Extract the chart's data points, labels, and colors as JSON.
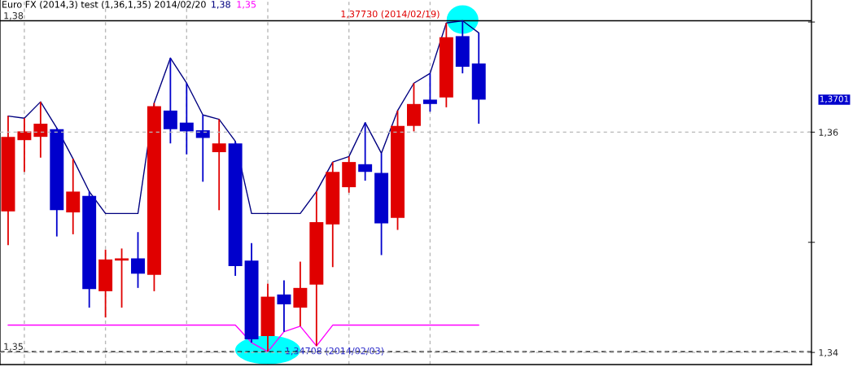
{
  "chart_data": {
    "type": "candlestick",
    "title": "Euro FX (2014,3) test (1,36,1,35) 2014/02/20",
    "categories": [
      null,
      null,
      null,
      null,
      null,
      null,
      null,
      null,
      null,
      null,
      null,
      null,
      null,
      null,
      null,
      null,
      null,
      null,
      null,
      null,
      null,
      null,
      null,
      null,
      null,
      null,
      null,
      null,
      null,
      null,
      null,
      null,
      null,
      null,
      null,
      null,
      null,
      null,
      null,
      null,
      null,
      null,
      null,
      null,
      null,
      null,
      null,
      null,
      null,
      null
    ],
    "ohlc": [
      [
        1.3599,
        1.3686,
        1.3568,
        1.3667
      ],
      [
        1.3664,
        1.3684,
        1.3635,
        1.3672
      ],
      [
        1.3667,
        1.3699,
        1.3648,
        1.3679
      ],
      [
        1.3674,
        1.3675,
        1.3576,
        1.36
      ],
      [
        1.3598,
        1.3647,
        1.3578,
        1.3617
      ],
      [
        1.3613,
        1.3617,
        1.3511,
        1.3528
      ],
      [
        1.3526,
        1.3564,
        1.3502,
        1.3555
      ],
      [
        1.3554,
        1.3565,
        1.3511,
        1.3556
      ],
      [
        1.3556,
        1.358,
        1.3529,
        1.3542
      ],
      [
        1.3541,
        1.3698,
        1.3526,
        1.3695
      ],
      [
        1.3691,
        1.3739,
        1.3661,
        1.3674
      ],
      [
        1.368,
        1.3716,
        1.3651,
        1.3672
      ],
      [
        1.3673,
        1.3687,
        1.3626,
        1.3666
      ],
      [
        1.3653,
        1.3683,
        1.36,
        1.3661
      ],
      [
        1.3661,
        1.3663,
        1.354,
        1.3549
      ],
      [
        1.3554,
        1.357,
        1.3479,
        1.3482
      ],
      [
        1.3485,
        1.3533,
        1.34708,
        1.3521
      ],
      [
        1.3523,
        1.3536,
        1.3489,
        1.3514
      ],
      [
        1.3511,
        1.3553,
        1.3494,
        1.3529
      ],
      [
        1.3532,
        1.3617,
        1.3476,
        1.3589
      ],
      [
        1.3587,
        1.3644,
        1.3548,
        1.3635
      ],
      [
        1.3621,
        1.3649,
        1.3616,
        1.3644
      ],
      [
        1.3642,
        1.368,
        1.3627,
        1.3635
      ],
      [
        1.3634,
        1.3652,
        1.3559,
        1.3588
      ],
      [
        1.3593,
        1.3691,
        1.3582,
        1.3677
      ],
      [
        1.3677,
        1.3716,
        1.3672,
        1.3697
      ],
      [
        1.3701,
        1.3725,
        1.369,
        1.3697
      ],
      [
        1.3703,
        1.3771,
        1.3694,
        1.3758
      ],
      [
        1.3759,
        1.3773,
        1.3725,
        1.3731
      ],
      [
        1.3734,
        1.3762,
        1.3679,
        1.3701
      ],
      null,
      null,
      null,
      null,
      null,
      null,
      null,
      null,
      null,
      null,
      null,
      null,
      null,
      null,
      null,
      null,
      null,
      null,
      null,
      null
    ],
    "colors": [
      "#e00000",
      "#e00000",
      "#e00000",
      "#0000cc",
      "#e00000",
      "#0000cc",
      "#e00000",
      "#e00000",
      "#0000cc",
      "#e00000",
      "#0000cc",
      "#0000cc",
      "#0000cc",
      "#e00000",
      "#0000cc",
      "#0000cc",
      "#e00000",
      "#0000cc",
      "#e00000",
      "#e00000",
      "#e00000",
      "#e00000",
      "#0000cc",
      "#0000cc",
      "#e00000",
      "#e00000",
      "#0000cc",
      "#e00000",
      "#0000cc",
      "#0000cc",
      null,
      null,
      null,
      null,
      null,
      null,
      null,
      null,
      null,
      null,
      null,
      null,
      null,
      null,
      null,
      null,
      null,
      null,
      null,
      null
    ],
    "series": [
      {
        "name": "1,38",
        "type": "line",
        "color": "#000080",
        "values": [
          1.3686,
          1.3684,
          1.3699,
          1.3675,
          1.3647,
          1.3617,
          1.3597,
          1.3597,
          1.3597,
          1.3698,
          1.3739,
          1.3716,
          1.3687,
          1.3683,
          1.3663,
          1.3597,
          1.3597,
          1.3597,
          1.3597,
          1.3617,
          1.3644,
          1.3649,
          1.368,
          1.3652,
          1.3691,
          1.3716,
          1.3725,
          1.3771,
          1.3773,
          1.3762,
          null,
          null,
          null,
          null,
          null,
          null,
          null,
          null,
          null,
          null,
          null,
          null,
          null,
          null,
          null,
          null,
          null,
          null,
          null,
          null
        ]
      },
      {
        "name": "1,35",
        "type": "line",
        "color": "#ff00ff",
        "values": [
          1.3495,
          1.3495,
          1.3495,
          1.3495,
          1.3495,
          1.3495,
          1.3495,
          1.3495,
          1.3495,
          1.3495,
          1.3495,
          1.3495,
          1.3495,
          1.3495,
          1.3495,
          1.3479,
          1.34708,
          1.3489,
          1.3494,
          1.3476,
          1.3495,
          1.3495,
          1.3495,
          1.3495,
          1.3495,
          1.3495,
          1.3495,
          1.3495,
          1.3495,
          1.3495,
          null,
          null,
          null,
          null,
          null,
          null,
          null,
          null,
          null,
          null,
          null,
          null,
          null,
          null,
          null,
          null,
          null,
          null,
          null,
          null
        ]
      }
    ],
    "ylim": [
      1.3459,
      1.3792
    ],
    "yticks": [
      {
        "value": 1.3773,
        "label": "1,38"
      },
      {
        "value": 1.34708,
        "label": "1,35"
      }
    ],
    "y2lim": [
      1.3389,
      1.372
    ],
    "y2ticks": [
      {
        "value": 1.37,
        "label": null
      },
      {
        "value": 1.36,
        "label": "1,36"
      },
      {
        "value": 1.35,
        "label": null
      },
      {
        "value": 1.34,
        "label": "1,34"
      }
    ],
    "ref_lines": [
      {
        "axis": "y",
        "value": 1.3773,
        "color": "#000000",
        "line_style": "solid"
      },
      {
        "axis": "y",
        "value": 1.34708,
        "color": "#000000",
        "line_style": "dashed"
      }
    ],
    "annotations": [
      {
        "text": "1,37730 (2014/02/19)",
        "y": 1.3773
      },
      {
        "text": "1,34708 (2014/02/03)",
        "y": 1.34708
      },
      "1,3701"
    ],
    "tick_labels": "y",
    "grid": true,
    "legend": "top left",
    "line_style": "solid"
  }
}
